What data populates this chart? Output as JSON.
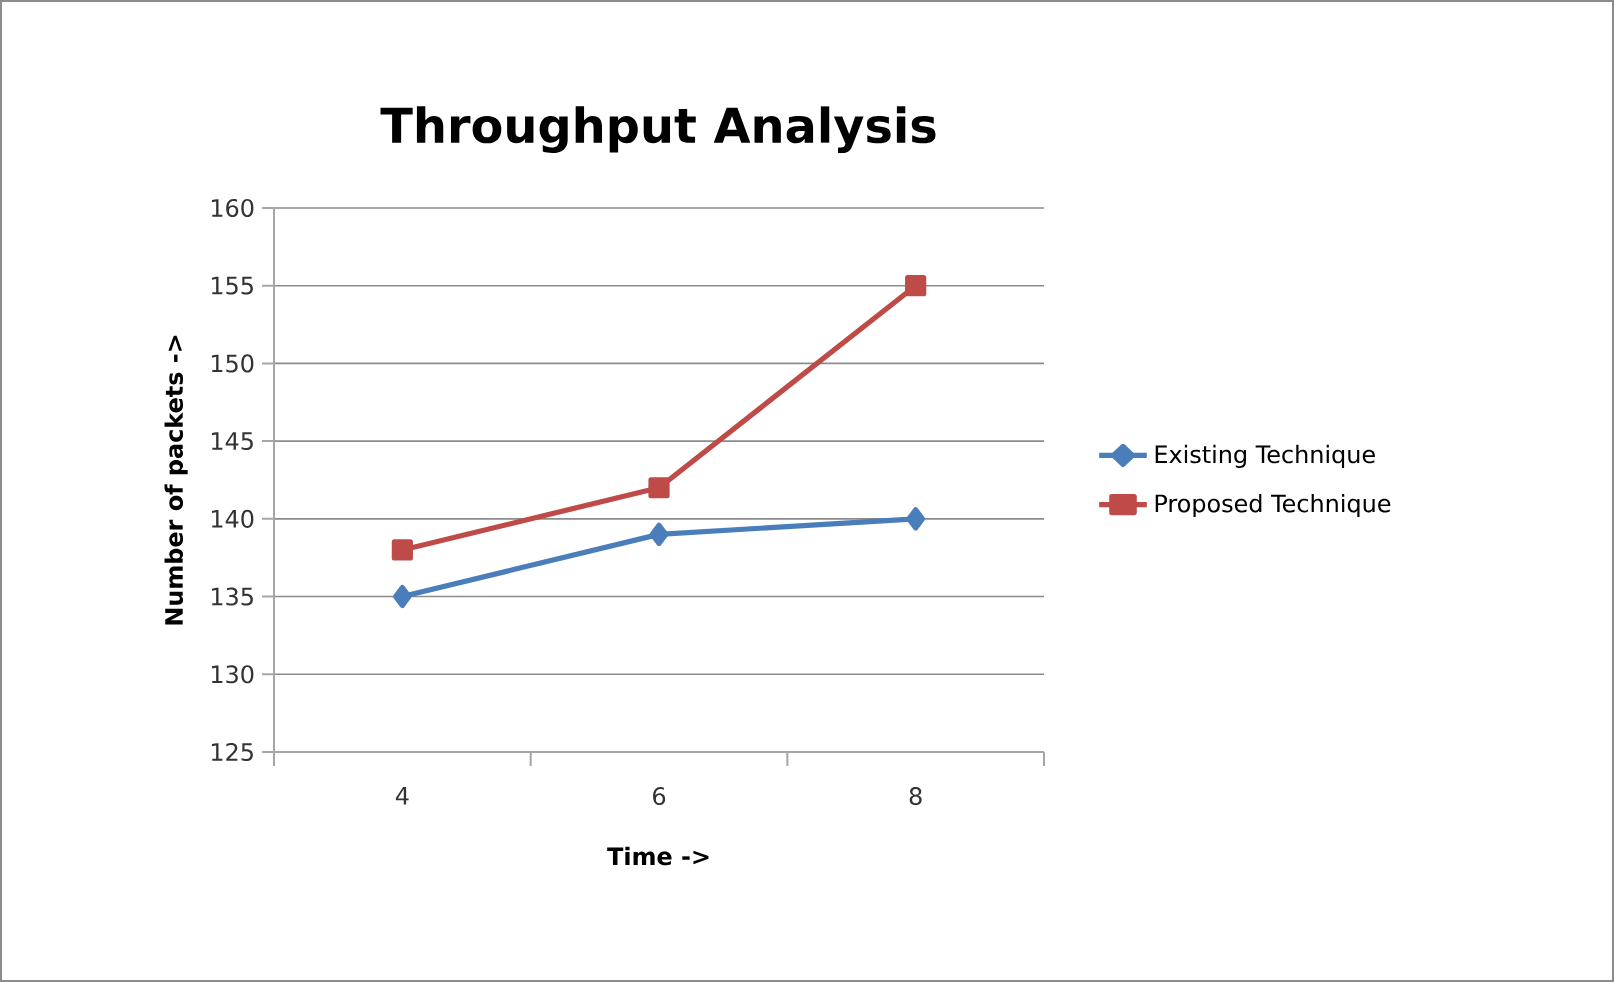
{
  "chart_data": {
    "type": "line",
    "title": "Throughput Analysis",
    "xlabel": "Time ->",
    "ylabel": "Number of packets ->",
    "categories": [
      "4",
      "6",
      "8"
    ],
    "series": [
      {
        "name": "Existing Technique",
        "color": "#4a7ebb",
        "values": [
          135,
          139,
          140
        ],
        "marker": "diamond"
      },
      {
        "name": "Proposed Technique",
        "color": "#be4b48",
        "values": [
          138,
          142,
          155
        ],
        "marker": "square"
      }
    ],
    "ylim": [
      125,
      160
    ],
    "yticks": [
      125,
      130,
      135,
      140,
      145,
      150,
      155,
      160
    ],
    "grid": "y",
    "legend": "right"
  }
}
